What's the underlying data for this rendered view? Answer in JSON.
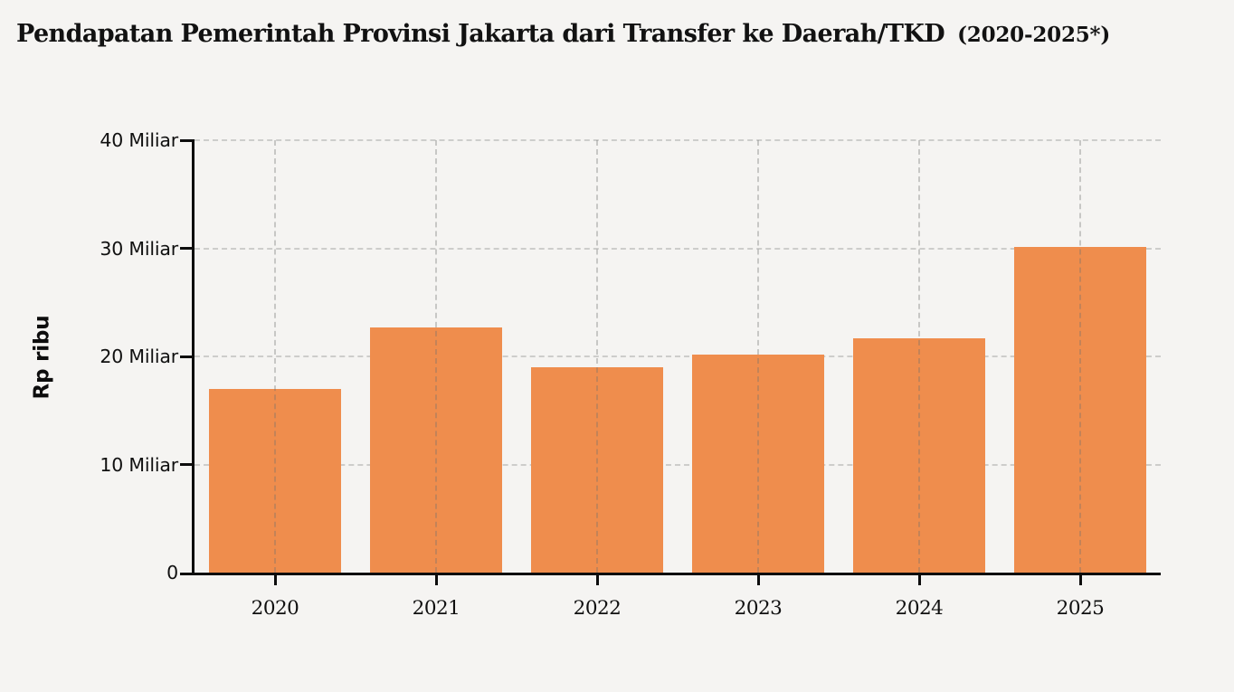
{
  "page": {
    "background_color": "#f5f4f2"
  },
  "header": {
    "title_main": "Pendapatan Pemerintah Provinsi Jakarta dari Transfer ke Daerah/TKD",
    "title_suffix": "(2020-2025*)"
  },
  "chart_data": {
    "type": "bar",
    "title": "Pendapatan Pemerintah Provinsi Jakarta dari Transfer ke Daerah/TKD (2020-2025*)",
    "categories": [
      "2020",
      "2021",
      "2022",
      "2023",
      "2024",
      "2025"
    ],
    "values": [
      17.0,
      22.7,
      19.0,
      20.2,
      21.7,
      30.1
    ],
    "unit_suffix": "Miliar",
    "xlabel": "",
    "ylabel": "Rp ribu",
    "ylim": [
      0,
      40
    ],
    "yticks": [
      {
        "value": 0,
        "label": "0"
      },
      {
        "value": 10,
        "label": "10 Miliar"
      },
      {
        "value": 20,
        "label": "20 Miliar"
      },
      {
        "value": 30,
        "label": "30 Miliar"
      },
      {
        "value": 40,
        "label": "40 Miliar"
      }
    ],
    "grid": true,
    "legend_position": "none",
    "bar_color": "#ef8d4d",
    "grid_color": "#cdcdcb",
    "axis_color": "#0d0d0d",
    "text_color": "#101010"
  }
}
